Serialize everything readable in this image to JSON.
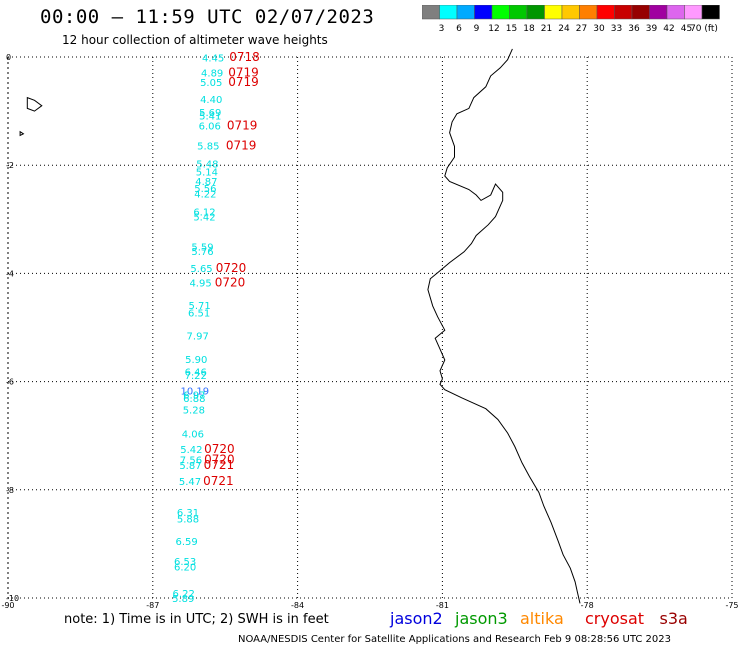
{
  "header": {
    "title": "00:00 – 11:59 UTC 02/07/2023",
    "subtitle": "12 hour collection of altimeter wave heights"
  },
  "colorbar": {
    "colors": [
      "#7f7f7f",
      "#00ffff",
      "#00aaff",
      "#0000ff",
      "#00ff00",
      "#00c800",
      "#009600",
      "#ffff00",
      "#ffc800",
      "#ff7f00",
      "#ff0000",
      "#c80000",
      "#960000",
      "#a000a0",
      "#dd66ee",
      "#ff99ff",
      "#000000"
    ],
    "labels": [
      "3",
      "6",
      "9",
      "12",
      "15",
      "18",
      "21",
      "24",
      "27",
      "30",
      "33",
      "36",
      "39",
      "42",
      "45",
      "70 (ft)"
    ]
  },
  "axes": {
    "x_ticks": [
      "-90",
      "-87",
      "-84",
      "-81",
      "-78",
      "-75"
    ],
    "y_ticks": [
      "0",
      "-2",
      "-4",
      "-6",
      "-8",
      "-10"
    ]
  },
  "wave_heights": [
    {
      "v": "4.45",
      "lat": -0.01,
      "lon": -85.75
    },
    {
      "v": "4.89",
      "lat": -0.29,
      "lon": -85.77
    },
    {
      "v": "5.05",
      "lat": -0.46,
      "lon": -85.79
    },
    {
      "v": "4.40",
      "lat": -0.78,
      "lon": -85.79
    },
    {
      "v": "5.69",
      "lat": -1.02,
      "lon": -85.81
    },
    {
      "v": "5.41",
      "lat": -1.08,
      "lon": -85.81
    },
    {
      "v": "6.06",
      "lat": -1.27,
      "lon": -85.82
    },
    {
      "v": "5.85",
      "lat": -1.64,
      "lon": -85.85
    },
    {
      "v": "5.48",
      "lat": -1.97,
      "lon": -85.87
    },
    {
      "v": "5.14",
      "lat": -2.12,
      "lon": -85.88
    },
    {
      "v": "4.87",
      "lat": -2.29,
      "lon": -85.89
    },
    {
      "v": "5.56",
      "lat": -2.42,
      "lon": -85.91
    },
    {
      "v": "4.22",
      "lat": -2.52,
      "lon": -85.91
    },
    {
      "v": "6.12",
      "lat": -2.86,
      "lon": -85.93
    },
    {
      "v": "5.42",
      "lat": -2.95,
      "lon": -85.93
    },
    {
      "v": "5.59",
      "lat": -3.5,
      "lon": -85.97
    },
    {
      "v": "5.76",
      "lat": -3.59,
      "lon": -85.97
    },
    {
      "v": "5.65",
      "lat": -3.9,
      "lon": -85.99
    },
    {
      "v": "4.95",
      "lat": -4.17,
      "lon": -86.01
    },
    {
      "v": "5.71",
      "lat": -4.58,
      "lon": -86.03
    },
    {
      "v": "6.51",
      "lat": -4.72,
      "lon": -86.04
    },
    {
      "v": "7.97",
      "lat": -5.15,
      "lon": -86.07
    },
    {
      "v": "5.90",
      "lat": -5.58,
      "lon": -86.1
    },
    {
      "v": "6.46",
      "lat": -5.81,
      "lon": -86.11
    },
    {
      "v": "7.22",
      "lat": -5.88,
      "lon": -86.11
    },
    {
      "v": "10.19",
      "lat": -6.16,
      "lon": -86.13
    },
    {
      "v": "6.97",
      "lat": -6.24,
      "lon": -86.14
    },
    {
      "v": "6.88",
      "lat": -6.3,
      "lon": -86.14
    },
    {
      "v": "5.28",
      "lat": -6.52,
      "lon": -86.15
    },
    {
      "v": "4.06",
      "lat": -6.96,
      "lon": -86.17
    },
    {
      "v": "5.42",
      "lat": -7.25,
      "lon": -86.2
    },
    {
      "v": "7.56",
      "lat": -7.44,
      "lon": -86.21
    },
    {
      "v": "5.87",
      "lat": -7.54,
      "lon": -86.22
    },
    {
      "v": "5.47",
      "lat": -7.84,
      "lon": -86.23
    },
    {
      "v": "6.31",
      "lat": -8.41,
      "lon": -86.27
    },
    {
      "v": "5.88",
      "lat": -8.53,
      "lon": -86.27
    },
    {
      "v": "6.59",
      "lat": -8.95,
      "lon": -86.3
    },
    {
      "v": "6.53",
      "lat": -9.32,
      "lon": -86.33
    },
    {
      "v": "6.20",
      "lat": -9.42,
      "lon": -86.33
    },
    {
      "v": "6.22",
      "lat": -9.91,
      "lon": -86.36
    },
    {
      "v": "5.89",
      "lat": -10.0,
      "lon": -86.37
    }
  ],
  "times": [
    {
      "v": "0718",
      "lat": 0.0,
      "lon": -85.1
    },
    {
      "v": "0719",
      "lat": -0.29,
      "lon": -85.12
    },
    {
      "v": "0719",
      "lat": -0.46,
      "lon": -85.12
    },
    {
      "v": "0719",
      "lat": -1.27,
      "lon": -85.15
    },
    {
      "v": "0719",
      "lat": -1.64,
      "lon": -85.17
    },
    {
      "v": "0720",
      "lat": -3.9,
      "lon": -85.38
    },
    {
      "v": "0720",
      "lat": -4.17,
      "lon": -85.4
    },
    {
      "v": "0720",
      "lat": -7.25,
      "lon": -85.62
    },
    {
      "v": "0720",
      "lat": -7.44,
      "lon": -85.62
    },
    {
      "v": "0721",
      "lat": -7.54,
      "lon": -85.63
    },
    {
      "v": "0721",
      "lat": -7.84,
      "lon": -85.64
    }
  ],
  "colors": {
    "swh": "#00e0e0",
    "swh_high": "#2f6fff",
    "time": "#dd0000",
    "grid": "#000000",
    "coast": "#000000"
  },
  "note": "note:  1) Time is in UTC;  2) SWH is in feet",
  "satellites": [
    {
      "name": "jason2",
      "color": "#0000dd"
    },
    {
      "name": "jason3",
      "color": "#009900"
    },
    {
      "name": "altika",
      "color": "#ff8800"
    },
    {
      "name": "cryosat",
      "color": "#dd0000"
    },
    {
      "name": "s3a",
      "color": "#990000"
    }
  ],
  "footer": "NOAA/NESDIS Center for Satellite Applications and Research    Feb  9 08:28:56 UTC 2023"
}
